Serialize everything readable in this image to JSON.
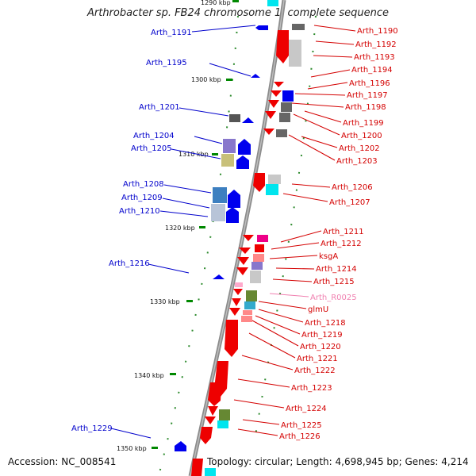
{
  "title": "Arthrobacter sp. FB24 chromosome 1, complete sequence",
  "accession": "Accession: NC_008541",
  "topology": "Topology: circular; Length: 4,698,945 bp; Genes: 4,214",
  "colors": {
    "forward_label": "#d40000",
    "reverse_label": "#0000cc",
    "rna_label": "#f080b0",
    "forward_gene": "#ee0000",
    "reverse_gene": "#0000ee",
    "backbone": "#888888",
    "tick_mark": "#008800"
  },
  "scale_ticks": [
    "1290 kbp",
    "1300 kbp",
    "1310 kbp",
    "1320 kbp",
    "1330 kbp",
    "1340 kbp",
    "1350 kbp"
  ],
  "reverse_strand_genes": [
    "Arth_1191",
    "Arth_1195",
    "Arth_1201",
    "Arth_1204",
    "Arth_1205",
    "Arth_1208",
    "Arth_1209",
    "Arth_1210",
    "Arth_1216",
    "Arth_1229"
  ],
  "forward_strand_genes": [
    "Arth_1190",
    "Arth_1192",
    "Arth_1193",
    "Arth_1194",
    "Arth_1196",
    "Arth_1197",
    "Arth_1198",
    "Arth_1199",
    "Arth_1200",
    "Arth_1202",
    "Arth_1203",
    "Arth_1206",
    "Arth_1207",
    "Arth_1211",
    "Arth_1212",
    "ksgA",
    "Arth_1214",
    "Arth_1215",
    "Arth_R0025",
    "glmU",
    "Arth_1218",
    "Arth_1219",
    "Arth_1220",
    "Arth_1221",
    "Arth_1222",
    "Arth_1223",
    "Arth_1224",
    "Arth_1225",
    "Arth_1226"
  ],
  "rna_genes": [
    "Arth_R0025"
  ]
}
